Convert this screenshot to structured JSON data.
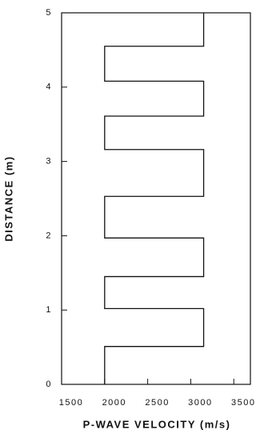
{
  "chart_data": {
    "type": "line",
    "x_label": "P-WAVE VELOCITY (m/s)",
    "y_label": "DISTANCE (m)",
    "xlim": [
      1500,
      3600
    ],
    "xticks": [
      1500,
      2000,
      2500,
      3000,
      3500
    ],
    "ylim": [
      0,
      5
    ],
    "yticks": [
      0,
      1,
      2,
      3,
      4,
      5
    ],
    "series": [
      {
        "color": "#111111",
        "x": [
          2000,
          2000,
          3150,
          3150,
          2000,
          2000,
          3150,
          3150,
          2000,
          2000,
          3150,
          3150,
          2000,
          2000,
          3150,
          3150,
          2000,
          2000,
          3150,
          3150
        ],
        "values": [
          0,
          0.51,
          0.51,
          1.02,
          1.02,
          1.45,
          1.45,
          1.97,
          1.97,
          2.53,
          2.53,
          3.16,
          3.16,
          3.61,
          3.61,
          4.08,
          4.08,
          4.55,
          4.55,
          5
        ]
      }
    ]
  }
}
